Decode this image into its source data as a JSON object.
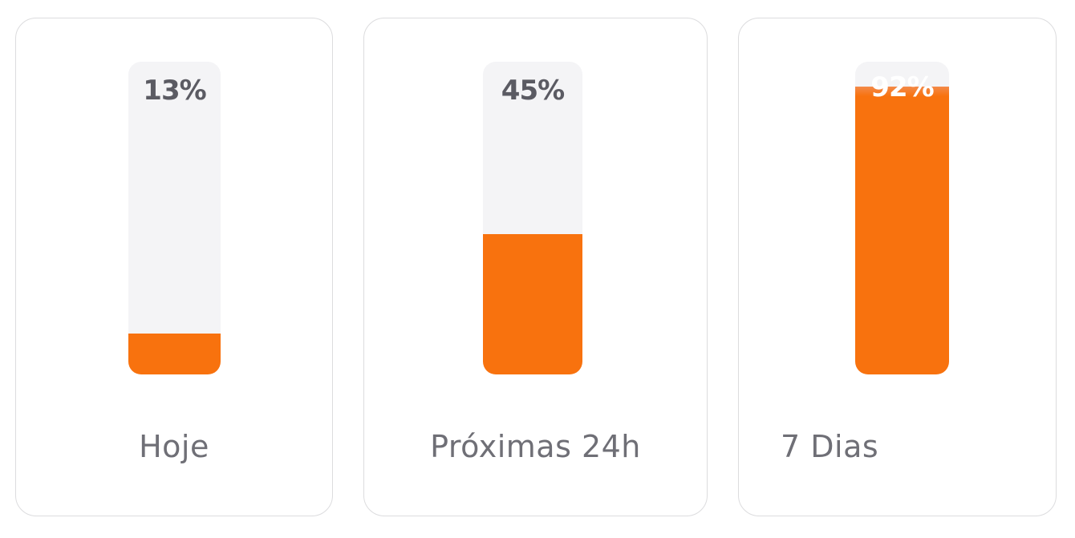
{
  "accent_color": "#f8720e",
  "track_color": "#f4f4f6",
  "cards": [
    {
      "label": "Hoje",
      "percent_text": "13%",
      "percent": 13
    },
    {
      "label": "Próximas 24h",
      "percent_text": "45%",
      "percent": 45
    },
    {
      "label": "7 Dias",
      "percent_text": "92%",
      "percent": 92
    }
  ]
}
